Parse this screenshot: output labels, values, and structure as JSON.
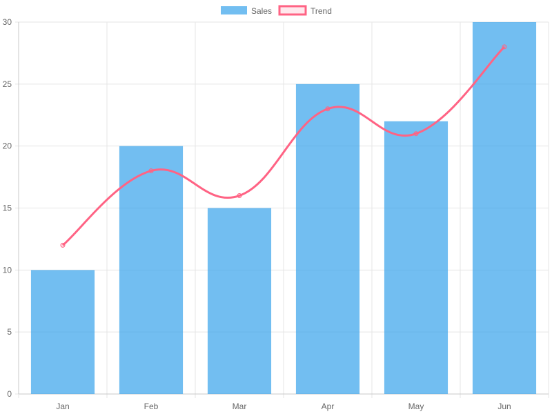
{
  "chart_data": {
    "type": "bar",
    "categories": [
      "Jan",
      "Feb",
      "Mar",
      "Apr",
      "May",
      "Jun"
    ],
    "series": [
      {
        "name": "Sales",
        "type": "bar",
        "values": [
          10,
          20,
          15,
          25,
          22,
          30
        ],
        "color": "#36A2EB"
      },
      {
        "name": "Trend",
        "type": "line",
        "values": [
          12,
          18,
          16,
          23,
          21,
          28
        ],
        "color": "#FF6384"
      }
    ],
    "ylim": [
      0,
      30
    ],
    "yticks": [
      0,
      5,
      10,
      15,
      20,
      25,
      30
    ],
    "grid": true,
    "legend": "top-center"
  }
}
